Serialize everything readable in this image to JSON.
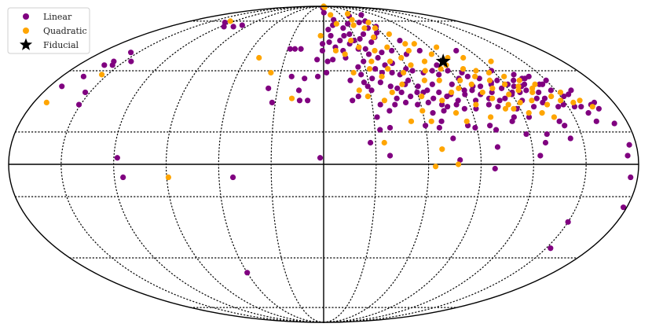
{
  "chart_data": {
    "type": "scatter",
    "projection": "mollweide",
    "grid": true,
    "legend_position": "top-left",
    "x_unit": "longitude (deg)",
    "y_unit": "latitude (deg)",
    "xlim": [
      -180,
      180
    ],
    "ylim": [
      -90,
      90
    ],
    "series": [
      {
        "name": "Linear",
        "color": "#800080",
        "marker": "circle",
        "points": [
          [
            -172,
            37
          ],
          [
            -165,
            42
          ],
          [
            -161,
            48
          ],
          [
            -158,
            50
          ],
          [
            -155,
            48
          ],
          [
            -153,
            34
          ],
          [
            -151,
            28
          ],
          [
            -156,
            55
          ],
          [
            -145,
            50
          ],
          [
            -128,
            74
          ],
          [
            -116,
            71
          ],
          [
            -105,
            71
          ],
          [
            -98,
            72
          ],
          [
            -118,
            3
          ],
          [
            -115,
            -6
          ],
          [
            -60,
            -53
          ],
          [
            -52,
            -6
          ],
          [
            -28,
            57
          ],
          [
            -36,
            36
          ],
          [
            -32,
            29
          ],
          [
            -24,
            57
          ],
          [
            -22,
            42
          ],
          [
            -19,
            57
          ],
          [
            -16,
            35
          ],
          [
            -15,
            30
          ],
          [
            -13,
            41
          ],
          [
            -10,
            30
          ],
          [
            -5,
            51
          ],
          [
            -4,
            42
          ],
          [
            -1,
            56
          ],
          [
            -2,
            3
          ],
          [
            0.5,
            82
          ],
          [
            -3,
            87
          ],
          [
            -1,
            60
          ],
          [
            2,
            44
          ],
          [
            3,
            50
          ],
          [
            5,
            69
          ],
          [
            5,
            61
          ],
          [
            7,
            65
          ],
          [
            7,
            51
          ],
          [
            10,
            58
          ],
          [
            11,
            72
          ],
          [
            14,
            76
          ],
          [
            15,
            62
          ],
          [
            16,
            56
          ],
          [
            17,
            52
          ],
          [
            18,
            40
          ],
          [
            18,
            30
          ],
          [
            20,
            65
          ],
          [
            22,
            70
          ],
          [
            22,
            32
          ],
          [
            23,
            60
          ],
          [
            25,
            47
          ],
          [
            26,
            43
          ],
          [
            26,
            66
          ],
          [
            27,
            39
          ],
          [
            28,
            62
          ],
          [
            29,
            37
          ],
          [
            29,
            57
          ],
          [
            30,
            73
          ],
          [
            30,
            50
          ],
          [
            31,
            35
          ],
          [
            32,
            22
          ],
          [
            33,
            41
          ],
          [
            34,
            63
          ],
          [
            35,
            57
          ],
          [
            35,
            28
          ],
          [
            36,
            54
          ],
          [
            37,
            46
          ],
          [
            38,
            39
          ],
          [
            39,
            17
          ],
          [
            40,
            66
          ],
          [
            40,
            25
          ],
          [
            41,
            44
          ],
          [
            42,
            79
          ],
          [
            42,
            52
          ],
          [
            43,
            61
          ],
          [
            44,
            37
          ],
          [
            44,
            28
          ],
          [
            45,
            48
          ],
          [
            46,
            74
          ],
          [
            46,
            31
          ],
          [
            47,
            55
          ],
          [
            48,
            44
          ],
          [
            48,
            36
          ],
          [
            49,
            64
          ],
          [
            50,
            70
          ],
          [
            50,
            34
          ],
          [
            51,
            29
          ],
          [
            51,
            49
          ],
          [
            53,
            43
          ],
          [
            54,
            38
          ],
          [
            55,
            67
          ],
          [
            55,
            32
          ],
          [
            56,
            75
          ],
          [
            56,
            56
          ],
          [
            57,
            40
          ],
          [
            58,
            28
          ],
          [
            59,
            46
          ],
          [
            60,
            34
          ],
          [
            61,
            71
          ],
          [
            62,
            37
          ],
          [
            63,
            45
          ],
          [
            64,
            34
          ],
          [
            65,
            29
          ],
          [
            66,
            80
          ],
          [
            66,
            54
          ],
          [
            66,
            24
          ],
          [
            67,
            35
          ],
          [
            68,
            17
          ],
          [
            69,
            31
          ],
          [
            70,
            62
          ],
          [
            70,
            44
          ],
          [
            72,
            38
          ],
          [
            73,
            28
          ],
          [
            73,
            25
          ],
          [
            74,
            34
          ],
          [
            75,
            12
          ],
          [
            76,
            27
          ],
          [
            77,
            45
          ],
          [
            78,
            32
          ],
          [
            79,
            56
          ],
          [
            80,
            43
          ],
          [
            81,
            33
          ],
          [
            82,
            28
          ],
          [
            83,
            48
          ],
          [
            84,
            30
          ],
          [
            85,
            38
          ],
          [
            86,
            26
          ],
          [
            88,
            45
          ],
          [
            89,
            17
          ],
          [
            90,
            33
          ],
          [
            91,
            35
          ],
          [
            92,
            41
          ],
          [
            93,
            26
          ],
          [
            95,
            30
          ],
          [
            96,
            35
          ],
          [
            97,
            44
          ],
          [
            98,
            37
          ],
          [
            99,
            42
          ],
          [
            100,
            33
          ],
          [
            101,
            16
          ],
          [
            102,
            28
          ],
          [
            103,
            37
          ],
          [
            104,
            31
          ],
          [
            106,
            41
          ],
          [
            107,
            27
          ],
          [
            108,
            34
          ],
          [
            109,
            56
          ],
          [
            110,
            30
          ],
          [
            111,
            38
          ],
          [
            112,
            39
          ],
          [
            114,
            22
          ],
          [
            114,
            31
          ],
          [
            116,
            36
          ],
          [
            117,
            40
          ],
          [
            118,
            26
          ],
          [
            119,
            45
          ],
          [
            120,
            33
          ],
          [
            121,
            34
          ],
          [
            122,
            38
          ],
          [
            123,
            22
          ],
          [
            124,
            30
          ],
          [
            125,
            37
          ],
          [
            126,
            34
          ],
          [
            128,
            40
          ],
          [
            129,
            27
          ],
          [
            130,
            37
          ],
          [
            131,
            35
          ],
          [
            132,
            43
          ],
          [
            133,
            38
          ],
          [
            134,
            31
          ],
          [
            135,
            41
          ],
          [
            136,
            29
          ],
          [
            137,
            41
          ],
          [
            138,
            34
          ],
          [
            139,
            31
          ],
          [
            140,
            20
          ],
          [
            141,
            42
          ],
          [
            142,
            18
          ],
          [
            143,
            38
          ],
          [
            144,
            27
          ],
          [
            145,
            38
          ],
          [
            147,
            35
          ],
          [
            148,
            28
          ],
          [
            150,
            40
          ],
          [
            152,
            32
          ],
          [
            154,
            27
          ],
          [
            156,
            33
          ],
          [
            158,
            27
          ],
          [
            160,
            35
          ],
          [
            162,
            20
          ],
          [
            165,
            28
          ],
          [
            168,
            26
          ],
          [
            172,
            19
          ],
          [
            176,
            9
          ],
          [
            174,
            4
          ],
          [
            176,
            -6
          ],
          [
            178,
            -20
          ],
          [
            153,
            -40
          ],
          [
            150,
            -27
          ],
          [
            124,
            4
          ],
          [
            98,
            -2
          ],
          [
            78,
            2
          ],
          [
            38,
            4
          ],
          [
            33,
            16
          ],
          [
            27,
            10
          ],
          [
            60,
            18
          ],
          [
            70,
            20
          ],
          [
            85,
            18
          ],
          [
            98,
            18
          ],
          [
            118,
            14
          ],
          [
            130,
            14
          ],
          [
            100,
            8
          ],
          [
            112,
            20
          ],
          [
            128,
            10
          ],
          [
            143,
            12
          ],
          [
            160,
            24
          ],
          [
            168,
            29
          ]
        ]
      },
      {
        "name": "Quadratic",
        "color": "#ffa500",
        "marker": "circle",
        "points": [
          [
            -126,
            75
          ],
          [
            -172,
            29
          ],
          [
            -154,
            43
          ],
          [
            -89,
            -6
          ],
          [
            -37,
            44
          ],
          [
            -20,
            31
          ],
          [
            -50,
            52
          ],
          [
            -3,
            90
          ],
          [
            5,
            88
          ],
          [
            -3,
            65
          ],
          [
            10,
            56
          ],
          [
            12,
            80
          ],
          [
            16,
            73
          ],
          [
            17,
            54
          ],
          [
            21,
            44
          ],
          [
            23,
            35
          ],
          [
            25,
            62
          ],
          [
            28,
            32
          ],
          [
            30,
            58
          ],
          [
            33,
            46
          ],
          [
            36,
            72
          ],
          [
            36,
            50
          ],
          [
            38,
            30
          ],
          [
            40,
            42
          ],
          [
            40,
            76
          ],
          [
            42,
            56
          ],
          [
            44,
            34
          ],
          [
            46,
            46
          ],
          [
            48,
            64
          ],
          [
            50,
            50
          ],
          [
            52,
            38
          ],
          [
            54,
            58
          ],
          [
            56,
            44
          ],
          [
            58,
            74
          ],
          [
            60,
            52
          ],
          [
            62,
            32
          ],
          [
            64,
            48
          ],
          [
            66,
            66
          ],
          [
            68,
            40
          ],
          [
            70,
            56
          ],
          [
            72,
            45
          ],
          [
            74,
            30
          ],
          [
            76,
            50
          ],
          [
            78,
            40
          ],
          [
            80,
            60
          ],
          [
            82,
            34
          ],
          [
            84,
            46
          ],
          [
            86,
            54
          ],
          [
            88,
            36
          ],
          [
            90,
            48
          ],
          [
            92,
            40
          ],
          [
            94,
            28
          ],
          [
            96,
            52
          ],
          [
            98,
            38
          ],
          [
            100,
            46
          ],
          [
            102,
            34
          ],
          [
            104,
            42
          ],
          [
            106,
            31
          ],
          [
            108,
            45
          ],
          [
            110,
            36
          ],
          [
            112,
            40
          ],
          [
            114,
            28
          ],
          [
            116,
            44
          ],
          [
            118,
            33
          ],
          [
            120,
            38
          ],
          [
            122,
            29
          ],
          [
            124,
            42
          ],
          [
            126,
            35
          ],
          [
            128,
            37
          ],
          [
            130,
            30
          ],
          [
            132,
            40
          ],
          [
            134,
            34
          ],
          [
            136,
            36
          ],
          [
            138,
            28
          ],
          [
            140,
            38
          ],
          [
            144,
            32
          ],
          [
            148,
            30
          ],
          [
            152,
            34
          ],
          [
            155,
            29
          ],
          [
            160,
            30
          ],
          [
            165,
            27
          ],
          [
            64,
            -1
          ],
          [
            68,
            7
          ],
          [
            77,
            0
          ],
          [
            85,
            20
          ],
          [
            100,
            22
          ],
          [
            111,
            26
          ],
          [
            124,
            24
          ],
          [
            138,
            22
          ],
          [
            58,
            70
          ],
          [
            45,
            81
          ],
          [
            52,
            20
          ],
          [
            35,
            10
          ],
          [
            46,
            70
          ],
          [
            72,
            60
          ],
          [
            96,
            58
          ],
          [
            60,
            25
          ],
          [
            80,
            24
          ],
          [
            64,
            20
          ],
          [
            108,
            52
          ],
          [
            126,
            50
          ],
          [
            116,
            26
          ],
          [
            132,
            24
          ]
        ]
      },
      {
        "name": "Fiducial",
        "color": "#000000",
        "marker": "star",
        "points": [
          [
            90,
            50
          ]
        ]
      }
    ]
  }
}
